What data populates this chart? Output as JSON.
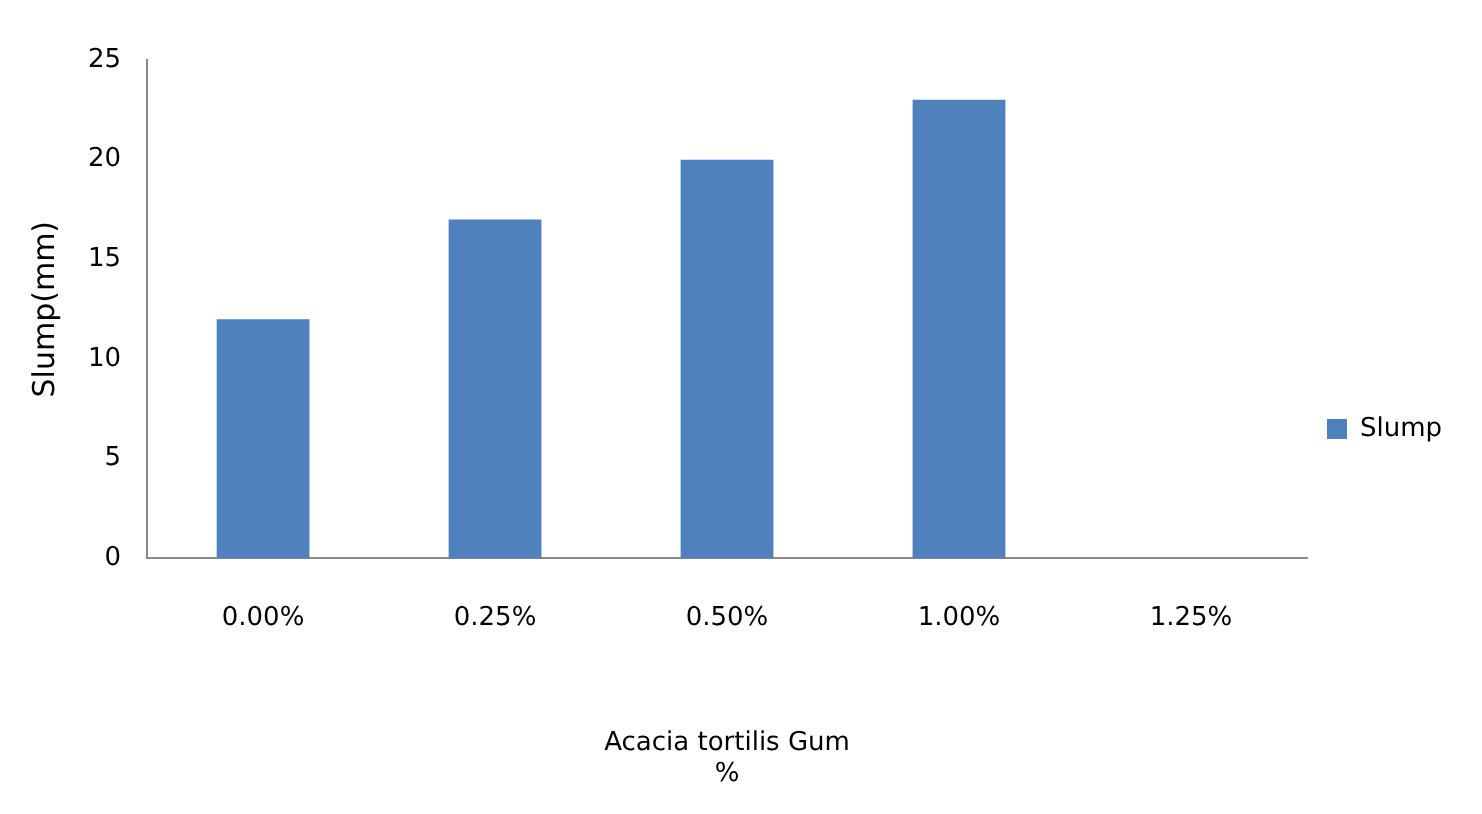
{
  "chart_data": {
    "type": "bar",
    "xlabel": "Acacia tortilis Gum\n%",
    "ylabel": "Slump(mm)",
    "categories": [
      "0.00%",
      "0.25%",
      "0.50%",
      "1.00%",
      "1.25%"
    ],
    "series": [
      {
        "name": "Slump",
        "color": "#4f81bd",
        "values": [
          12,
          17,
          20,
          23,
          null
        ]
      }
    ],
    "ylim": [
      0,
      25
    ],
    "yticks": [
      0,
      5,
      10,
      15,
      20,
      25
    ],
    "grid": false,
    "legend": "right"
  }
}
